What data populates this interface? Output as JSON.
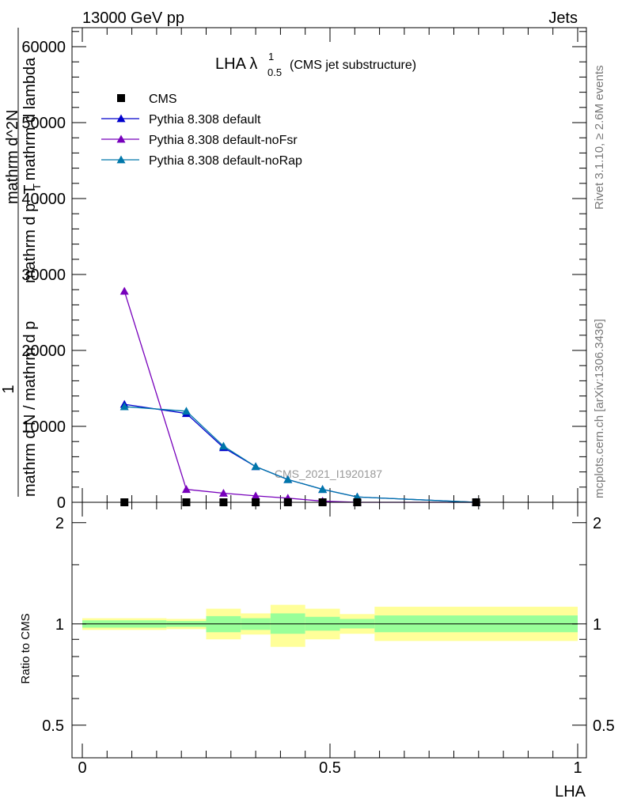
{
  "header": {
    "left": "13000 GeV pp",
    "right": "Jets"
  },
  "side_labels": {
    "rivet": "Rivet 3.1.10, ≥ 2.6M events",
    "mcplots": "mcplots.cern.ch [arXiv:1306.3436]"
  },
  "colors": {
    "cms": "#000000",
    "default": "#0000cc",
    "noFsr": "#7700bb",
    "noRap": "#0077aa",
    "band_inner": "#99ff99",
    "band_outer": "#ffff99"
  },
  "chart_data": [
    {
      "type": "line",
      "title_main": "LHA λ",
      "title_sup": "1",
      "title_sub": "0.5",
      "title_suffix": "(CMS jet substructure)",
      "watermark": "CMS_2021_I1920187",
      "ylabel_numerator": "1",
      "ylabel_lines": [
        "mathrm d N / mathrm d p",
        "mathrm d^2N",
        "mathrm d p_T mathrm d lambda"
      ],
      "ylabel_T": "T",
      "ylim": [
        0,
        62500
      ],
      "yticks": [
        0,
        10000,
        20000,
        30000,
        40000,
        50000,
        60000
      ],
      "ytick_labels": [
        "0",
        "10000",
        "20000",
        "30000",
        "40000",
        "50000",
        "60000"
      ],
      "xlim": [
        0,
        1
      ],
      "grid": false,
      "legend_placement": "top-left",
      "series": [
        {
          "name": "CMS",
          "marker": "square",
          "color_key": "cms",
          "x": [
            0.085,
            0.21,
            0.285,
            0.35,
            0.415,
            0.485,
            0.555,
            0.795
          ],
          "y": [
            0,
            0,
            0,
            0,
            0,
            0,
            0,
            0
          ]
        },
        {
          "name": "Pythia 8.308 default",
          "marker": "triangle",
          "color_key": "default",
          "x": [
            0.085,
            0.21,
            0.285,
            0.35,
            0.415,
            0.485,
            0.555,
            0.795
          ],
          "y": [
            12900,
            11700,
            7200,
            4700,
            3000,
            1700,
            700,
            0
          ]
        },
        {
          "name": "Pythia 8.308 default-noFsr",
          "marker": "triangle",
          "color_key": "noFsr",
          "x": [
            0.085,
            0.21,
            0.285,
            0.35,
            0.415,
            0.485,
            0.555,
            0.795
          ],
          "y": [
            27800,
            1700,
            1200,
            850,
            550,
            150,
            0,
            0
          ]
        },
        {
          "name": "Pythia 8.308 default-noRap",
          "marker": "triangle",
          "color_key": "noRap",
          "x": [
            0.085,
            0.21,
            0.285,
            0.35,
            0.415,
            0.485,
            0.555,
            0.795
          ],
          "y": [
            12600,
            12000,
            7400,
            4700,
            3000,
            1700,
            700,
            0
          ]
        }
      ]
    },
    {
      "type": "area",
      "ylabel": "Ratio to CMS",
      "xlabel": "LHA",
      "xlim": [
        0,
        1
      ],
      "ylim": [
        0.4,
        2.3
      ],
      "log_y": true,
      "yticks": [
        0.5,
        1,
        2
      ],
      "ytick_labels": [
        "0.5",
        "1",
        "2"
      ],
      "xticks": [
        0,
        0.5,
        1
      ],
      "xtick_labels": [
        "0",
        "0.5",
        "1"
      ],
      "reference_line": 1,
      "bins": [
        {
          "x0": 0.0,
          "x1": 0.17,
          "inner": [
            0.975,
            1.025
          ],
          "outer": [
            0.96,
            1.04
          ]
        },
        {
          "x0": 0.17,
          "x1": 0.25,
          "inner": [
            0.98,
            1.02
          ],
          "outer": [
            0.965,
            1.035
          ]
        },
        {
          "x0": 0.25,
          "x1": 0.32,
          "inner": [
            0.945,
            1.055
          ],
          "outer": [
            0.9,
            1.11
          ]
        },
        {
          "x0": 0.32,
          "x1": 0.38,
          "inner": [
            0.96,
            1.04
          ],
          "outer": [
            0.93,
            1.075
          ]
        },
        {
          "x0": 0.38,
          "x1": 0.45,
          "inner": [
            0.935,
            1.075
          ],
          "outer": [
            0.855,
            1.14
          ]
        },
        {
          "x0": 0.45,
          "x1": 0.52,
          "inner": [
            0.955,
            1.05
          ],
          "outer": [
            0.9,
            1.11
          ]
        },
        {
          "x0": 0.52,
          "x1": 0.59,
          "inner": [
            0.97,
            1.035
          ],
          "outer": [
            0.935,
            1.07
          ]
        },
        {
          "x0": 0.59,
          "x1": 1.0,
          "inner": [
            0.945,
            1.06
          ],
          "outer": [
            0.89,
            1.125
          ]
        }
      ]
    }
  ]
}
